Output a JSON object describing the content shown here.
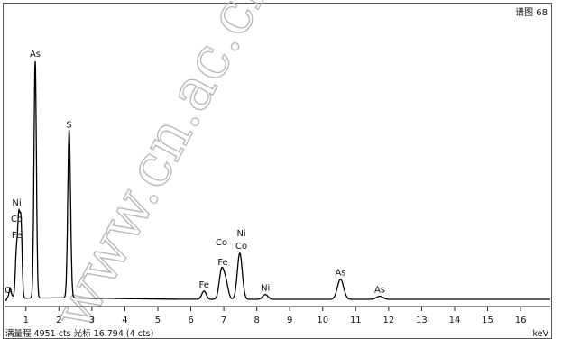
{
  "spectrum_label": "谱图 68",
  "status_text": "满量程 4951 cts 光标 16.794 (4 cts)",
  "x_unit": "keV",
  "watermark": "www.cn.ac.cn/",
  "colors": {
    "line": "#000000",
    "frame": "#555555",
    "watermark": "#b9b9b9"
  },
  "chart_data": {
    "type": "line",
    "title": "谱图 68",
    "xlabel": "keV",
    "ylabel": "",
    "xlim": [
      0.35,
      16.9
    ],
    "ylim": [
      0,
      4951
    ],
    "x_ticks": [
      1,
      2,
      3,
      4,
      5,
      6,
      7,
      8,
      9,
      10,
      11,
      12,
      13,
      14,
      15,
      16
    ],
    "full_scale": "4951 cts",
    "cursor": {
      "x": 16.794,
      "counts": 4
    },
    "peaks": [
      {
        "element": "O",
        "energy": 0.52,
        "counts": 180
      },
      {
        "element": "Fe",
        "energy": 0.71,
        "counts": 900,
        "stack": 0
      },
      {
        "element": "Co",
        "energy": 0.78,
        "counts": 1550,
        "stack": 1
      },
      {
        "element": "Ni",
        "energy": 0.85,
        "counts": 1550,
        "stack": 2
      },
      {
        "element": "As",
        "energy": 1.28,
        "counts": 4950
      },
      {
        "element": "S",
        "energy": 2.31,
        "counts": 3480
      },
      {
        "element": "Fe",
        "energy": 6.4,
        "counts": 170
      },
      {
        "element": "Co",
        "energy": 6.93,
        "counts": 580,
        "label": "Co"
      },
      {
        "element": "Fe",
        "energy": 7.06,
        "counts": 350
      },
      {
        "element": "Ni",
        "energy": 7.48,
        "counts": 480,
        "stack": 0
      },
      {
        "element": "Co",
        "energy": 7.49,
        "counts": 480,
        "stack": 1
      },
      {
        "element": "Ni",
        "energy": 8.26,
        "counts": 100
      },
      {
        "element": "As",
        "energy": 10.54,
        "counts": 420
      },
      {
        "element": "As",
        "energy": 11.73,
        "counts": 65
      }
    ]
  }
}
